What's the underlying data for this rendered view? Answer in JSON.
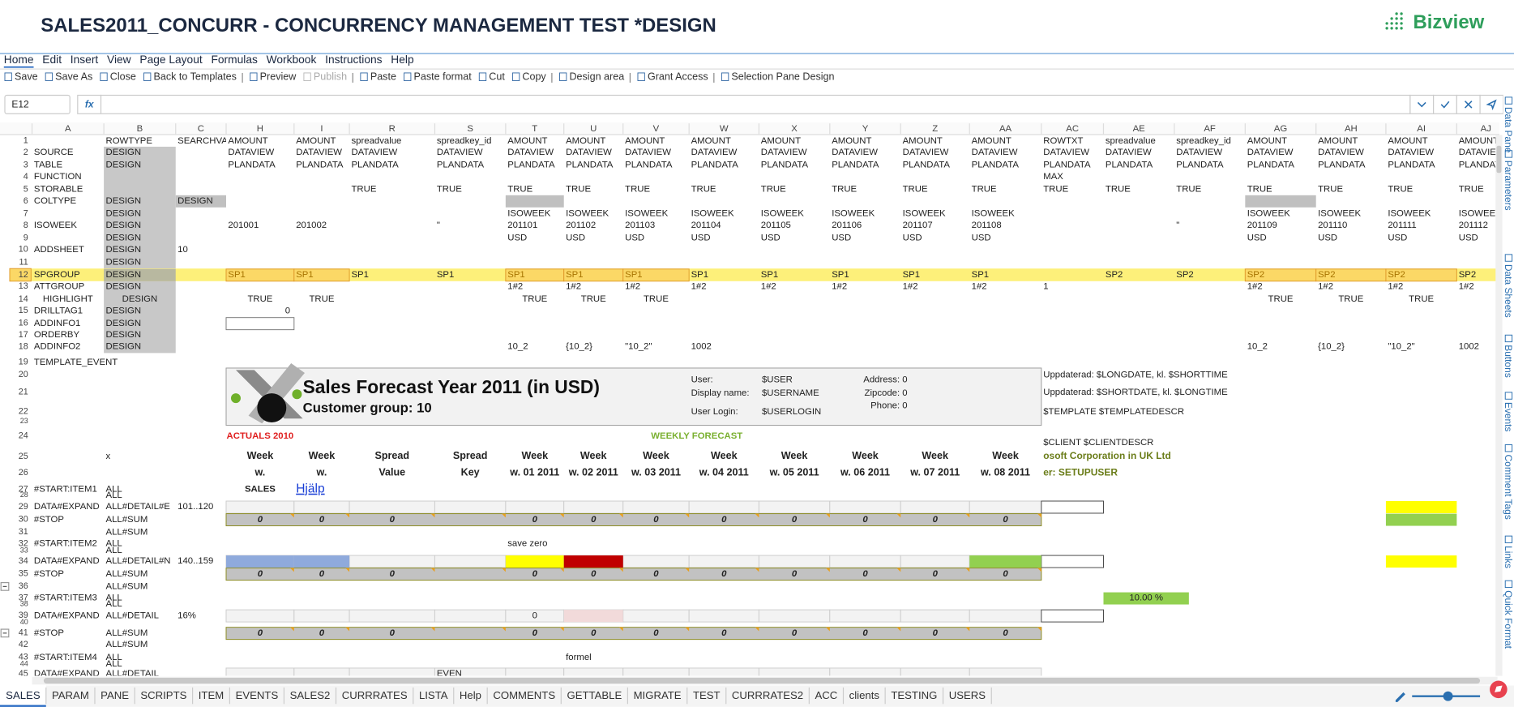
{
  "header": {
    "title": "SALES2011_CONCURR - CONCURRENCY MANAGEMENT TEST *DESIGN",
    "logo": "Bizview"
  },
  "menu": [
    "Home",
    "Edit",
    "Insert",
    "View",
    "Page Layout",
    "Formulas",
    "Workbook",
    "Instructions",
    "Help"
  ],
  "toolbar": [
    "Save",
    "Save As",
    "Close",
    "Back to Templates",
    "Preview",
    "Publish",
    "Paste",
    "Paste format",
    "Cut",
    "Copy",
    "Design area",
    "Grant Access",
    "Selection Pane Design"
  ],
  "formula_bar": {
    "cell": "E12",
    "fx": "fx"
  },
  "sheet": {
    "columns": [
      "A",
      "B",
      "C",
      "H",
      "I",
      "R",
      "S",
      "T",
      "U",
      "V",
      "W",
      "X",
      "Y",
      "Z",
      "AA",
      "AC",
      "AE",
      "AF",
      "AG",
      "AH",
      "AI",
      "AJ"
    ],
    "rows": [
      {
        "num": 1,
        "cells": {
          "B": "ROWTYPE",
          "C": "SEARCHVA",
          "H": "AMOUNT",
          "I": "AMOUNT",
          "R": "spreadvalue",
          "S": "spreadkey_id",
          "T": "AMOUNT",
          "U": "AMOUNT",
          "V": "AMOUNT",
          "W": "AMOUNT",
          "X": "AMOUNT",
          "Y": "AMOUNT",
          "Z": "AMOUNT",
          "AA": "AMOUNT",
          "AC": "ROWTXT",
          "AE": "spreadvalue",
          "AF": "spreadkey_id",
          "AG": "AMOUNT",
          "AH": "AMOUNT",
          "AI": "AMOUNT",
          "AJ": "AMOUNT"
        }
      },
      {
        "num": 2,
        "cells": {
          "A": "SOURCE",
          "B": "DESIGN",
          "H": "DATAVIEW",
          "I": "DATAVIEW",
          "R": "DATAVIEW",
          "S": "DATAVIEW",
          "T": "DATAVIEW",
          "U": "DATAVIEW",
          "V": "DATAVIEW",
          "W": "DATAVIEW",
          "X": "DATAVIEW",
          "Y": "DATAVIEW",
          "Z": "DATAVIEW",
          "AA": "DATAVIEW",
          "AC": "DATAVIEW",
          "AE": "DATAVIEW",
          "AF": "DATAVIEW",
          "AG": "DATAVIEW",
          "AH": "DATAVIEW",
          "AI": "DATAVIEW",
          "AJ": "DATAVIEW"
        }
      },
      {
        "num": 3,
        "cells": {
          "A": "TABLE",
          "B": "DESIGN",
          "H": "PLANDATA",
          "I": "PLANDATA",
          "R": "PLANDATA",
          "S": "PLANDATA",
          "T": "PLANDATA",
          "U": "PLANDATA",
          "V": "PLANDATA",
          "W": "PLANDATA",
          "X": "PLANDATA",
          "Y": "PLANDATA",
          "Z": "PLANDATA",
          "AA": "PLANDATA",
          "AC": "PLANDATA",
          "AE": "PLANDATA",
          "AF": "PLANDATA",
          "AG": "PLANDATA",
          "AH": "PLANDATA",
          "AI": "PLANDATA",
          "AJ": "PLANDATA"
        }
      },
      {
        "num": 4,
        "cells": {
          "A": "FUNCTION",
          "AC": "MAX"
        }
      },
      {
        "num": 5,
        "cells": {
          "A": "STORABLE",
          "R": "TRUE",
          "S": "TRUE",
          "T": "TRUE",
          "U": "TRUE",
          "V": "TRUE",
          "W": "TRUE",
          "X": "TRUE",
          "Y": "TRUE",
          "Z": "TRUE",
          "AA": "TRUE",
          "AC": "TRUE",
          "AE": "TRUE",
          "AF": "TRUE",
          "AG": "TRUE",
          "AH": "TRUE",
          "AI": "TRUE",
          "AJ": "TRUE"
        }
      },
      {
        "num": 6,
        "cells": {
          "A": "COLTYPE",
          "B": "DESIGN",
          "C": "DESIGN"
        }
      },
      {
        "num": 7,
        "cells": {
          "B": "DESIGN",
          "T": "ISOWEEK",
          "U": "ISOWEEK",
          "V": "ISOWEEK",
          "W": "ISOWEEK",
          "X": "ISOWEEK",
          "Y": "ISOWEEK",
          "Z": "ISOWEEK",
          "AA": "ISOWEEK",
          "AG": "ISOWEEK",
          "AH": "ISOWEEK",
          "AI": "ISOWEEK",
          "AJ": "ISOWEEK"
        }
      },
      {
        "num": 8,
        "cells": {
          "A": "ISOWEEK",
          "B": "DESIGN",
          "H": 201001,
          "I": 201002,
          "S": "\"",
          "T": 201101,
          "U": 201102,
          "V": 201103,
          "W": 201104,
          "X": 201105,
          "Y": 201106,
          "Z": 201107,
          "AA": 201108,
          "AF": "\"",
          "AG": 201109,
          "AH": 201110,
          "AI": 201111,
          "AJ": 201112
        }
      },
      {
        "num": 9,
        "cells": {
          "B": "DESIGN",
          "T": "USD",
          "U": "USD",
          "V": "USD",
          "W": "USD",
          "X": "USD",
          "Y": "USD",
          "Z": "USD",
          "AA": "USD",
          "AG": "USD",
          "AH": "USD",
          "AI": "USD",
          "AJ": "USD"
        }
      },
      {
        "num": 10,
        "cells": {
          "A": "ADDSHEET",
          "B": "DESIGN",
          "C": 10
        }
      },
      {
        "num": 11,
        "cells": {
          "B": "DESIGN"
        }
      },
      {
        "num": 12,
        "cells": {
          "A": "SPGROUP",
          "B": "DESIGN",
          "H": "SP1",
          "I": "SP1",
          "R": "SP1",
          "S": "SP1",
          "T": "SP1",
          "U": "SP1",
          "V": "SP1",
          "W": "SP1",
          "X": "SP1",
          "Y": "SP1",
          "Z": "SP1",
          "AA": "SP1",
          "AE": "SP2",
          "AF": "SP2",
          "AG": "SP2",
          "AH": "SP2",
          "AI": "SP2",
          "AJ": "SP2"
        }
      },
      {
        "num": 13,
        "cells": {
          "A": "ATTGROUP",
          "B": "DESIGN",
          "T": "1#2",
          "U": "1#2",
          "V": "1#2",
          "W": "1#2",
          "X": "1#2",
          "Y": "1#2",
          "Z": "1#2",
          "AA": "1#2",
          "AC": 1,
          "AG": "1#2",
          "AH": "1#2",
          "AI": "1#2",
          "AJ": "1#2"
        }
      },
      {
        "num": 14,
        "cells": {
          "A": "HIGHLIGHT",
          "B": "DESIGN",
          "H": "TRUE",
          "I": "TRUE",
          "T": "TRUE",
          "U": "TRUE",
          "V": "TRUE",
          "AG": "TRUE",
          "AH": "TRUE",
          "AI": "TRUE"
        }
      },
      {
        "num": 15,
        "cells": {
          "A": "DRILLTAG1",
          "B": "DESIGN",
          "H": 0
        }
      },
      {
        "num": 16,
        "cells": {
          "A": "ADDINFO1",
          "B": "DESIGN"
        }
      },
      {
        "num": 17,
        "cells": {
          "A": "ORDERBY",
          "B": "DESIGN"
        }
      },
      {
        "num": 18,
        "cells": {
          "A": "ADDINFO2",
          "B": "DESIGN",
          "T": "10_2",
          "U": "{10_2}",
          "V": "\"10_2\"",
          "W": 1002,
          "AG": "10_2",
          "AH": "{10_2}",
          "AI": "\"10_2\"",
          "AJ": 1002
        }
      },
      {
        "num": 19,
        "cells": {
          "A": "TEMPLATE_EVENT"
        }
      },
      {
        "num": 20,
        "cells": {
          "AC": "Uppdaterad: $LONGDATE, kl. $SHORTTIME"
        }
      },
      {
        "num": 21,
        "cells": {
          "AC": "Uppdaterad: $SHORTDATE, kl. $LONGTIME"
        }
      },
      {
        "num": 22,
        "cells": {
          "AC": "$TEMPLATE $TEMPLATEDESCR"
        }
      },
      {
        "num": 23,
        "cells": {}
      },
      {
        "num": 24,
        "cells": {
          "H": "ACTUALS 2010",
          "W": "WEEKLY FORECAST",
          "AC": "$CLIENT $CLIENTDESCR"
        }
      },
      {
        "num": 25,
        "cells": {
          "B": "x",
          "H": "Week",
          "I": "Week",
          "R": "Spread",
          "S": "Spread",
          "T": "Week",
          "U": "Week",
          "V": "Week",
          "W": "Week",
          "X": "Week",
          "Y": "Week",
          "Z": "Week",
          "AA": "Week",
          "AC": "osoft Corporation in UK Ltd"
        }
      },
      {
        "num": 26,
        "cells": {
          "H": "w.",
          "I": "w.",
          "R": "Value",
          "S": "Key",
          "T": "w. 01 2011",
          "U": "w. 02 2011",
          "V": "w. 03 2011",
          "W": "w. 04 2011",
          "X": "w. 05 2011",
          "Y": "w. 06 2011",
          "Z": "w. 07 2011",
          "AA": "w. 08 2011",
          "AC": "er: SETUPUSER"
        }
      },
      {
        "num": 27,
        "cells": {
          "A": "#START:ITEM1",
          "B": "ALL",
          "H": "SALES",
          "I": "Hjälp"
        }
      },
      {
        "num": 28,
        "cells": {
          "B": "ALL"
        }
      },
      {
        "num": 29,
        "cells": {
          "A": "DATA#EXPAND",
          "B": "ALL#DETAIL#E",
          "C": "101..120"
        }
      },
      {
        "num": 30,
        "cells": {
          "A": "#STOP",
          "B": "ALL#SUM",
          "H": 0,
          "I": 0,
          "R": 0,
          "T": 0,
          "U": 0,
          "V": 0,
          "W": 0,
          "X": 0,
          "Y": 0,
          "Z": 0,
          "AA": 0
        }
      },
      {
        "num": 31,
        "cells": {
          "B": "ALL#SUM"
        }
      },
      {
        "num": 32,
        "cells": {
          "A": "#START:ITEM2",
          "B": "ALL",
          "T": "save zero"
        }
      },
      {
        "num": 33,
        "cells": {
          "B": "ALL"
        }
      },
      {
        "num": 34,
        "cells": {
          "A": "DATA#EXPAND",
          "B": "ALL#DETAIL#N",
          "C": "140..159"
        }
      },
      {
        "num": 35,
        "cells": {
          "A": "#STOP",
          "B": "ALL#SUM",
          "H": 0,
          "I": 0,
          "R": 0,
          "T": 0,
          "U": 0,
          "V": 0,
          "W": 0,
          "X": 0,
          "Y": 0,
          "Z": 0,
          "AA": 0
        }
      },
      {
        "num": 36,
        "cells": {
          "B": "ALL#SUM"
        }
      },
      {
        "num": 37,
        "cells": {
          "A": "#START:ITEM3",
          "B": "ALL",
          "AE": "10.00 %"
        }
      },
      {
        "num": 38,
        "cells": {
          "B": "ALL"
        }
      },
      {
        "num": 39,
        "cells": {
          "A": "DATA#EXPAND",
          "B": "ALL#DETAIL",
          "C": "16%",
          "T": 0
        }
      },
      {
        "num": 40,
        "cells": {}
      },
      {
        "num": 41,
        "cells": {
          "A": "#STOP",
          "B": "ALL#SUM",
          "H": 0,
          "I": 0,
          "R": 0,
          "T": 0,
          "U": 0,
          "V": 0,
          "W": 0,
          "X": 0,
          "Y": 0,
          "Z": 0,
          "AA": 0
        }
      },
      {
        "num": 42,
        "cells": {
          "B": "ALL#SUM"
        }
      },
      {
        "num": 43,
        "cells": {
          "A": "#START:ITEM4",
          "B": "ALL",
          "U": "formel"
        }
      },
      {
        "num": 44,
        "cells": {
          "B": "ALL"
        }
      },
      {
        "num": 45,
        "cells": {
          "A": "DATA#EXPAND",
          "B": "ALL#DETAIL",
          "S": "EVEN"
        }
      }
    ],
    "template": {
      "title": "Sales Forecast Year 2011 (in USD)",
      "subtitle": "Customer group: 10",
      "user_fields": [
        {
          "label": "User:",
          "value": "$USER"
        },
        {
          "label": "Display name:",
          "value": "$USERNAME"
        },
        {
          "label": "User Login:",
          "value": "$USERLOGIN"
        }
      ],
      "contact": [
        "Address: 0",
        "Zipcode: 0",
        "Phone: 0"
      ]
    }
  },
  "side_panel": [
    "Data Pane",
    "Parameters",
    "Data Sheets",
    "Buttons",
    "Events",
    "Comment Tags",
    "Links",
    "Quick Format"
  ],
  "tabs": [
    "SALES",
    "PARAM",
    "PANE",
    "SCRIPTS",
    "ITEM",
    "EVENTS",
    "SALES2",
    "CURRRATES",
    "LISTA",
    "Help",
    "COMMENTS",
    "GETTABLE",
    "MIGRATE",
    "TEST",
    "CURRRATES2",
    "ACC",
    "clients",
    "TESTING",
    "USERS"
  ]
}
